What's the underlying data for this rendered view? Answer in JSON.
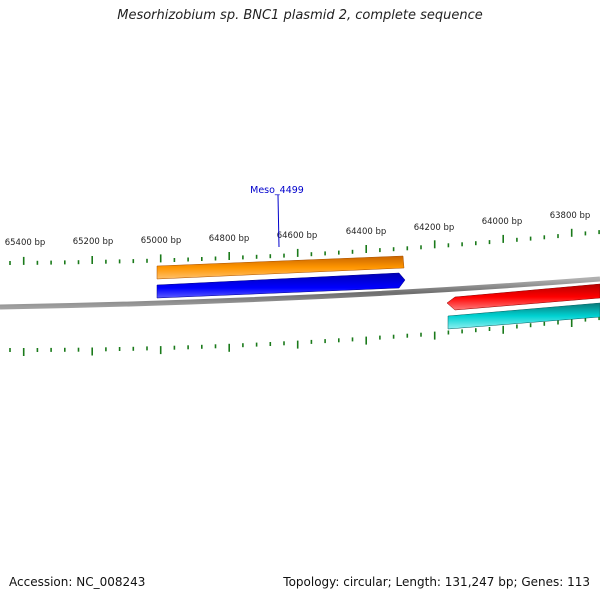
{
  "title": "Mesorhizobium sp. BNC1 plasmid 2, complete sequence",
  "footer": {
    "accession": "Accession: NC_008243",
    "summary": "Topology: circular; Length: 131,247 bp; Genes: 113"
  },
  "tick_labels": [
    "65400 bp",
    "65200 bp",
    "65000 bp",
    "64800 bp",
    "64600 bp",
    "64400 bp",
    "64200 bp",
    "64000 bp",
    "63800 bp"
  ],
  "genes": [
    {
      "label": "Meso_4499",
      "color": "#0000e6",
      "strand": "forward"
    },
    {
      "label": "",
      "color": "#ff8c00",
      "strand": "forward"
    },
    {
      "label": "",
      "color": "#e60000",
      "strand": "reverse"
    },
    {
      "label": "",
      "color": "#00c8c8",
      "strand": "reverse"
    }
  ],
  "colors": {
    "backbone": "#7a7a7a",
    "ticks": "#1a7a1a",
    "label_link": "#0000cc"
  }
}
